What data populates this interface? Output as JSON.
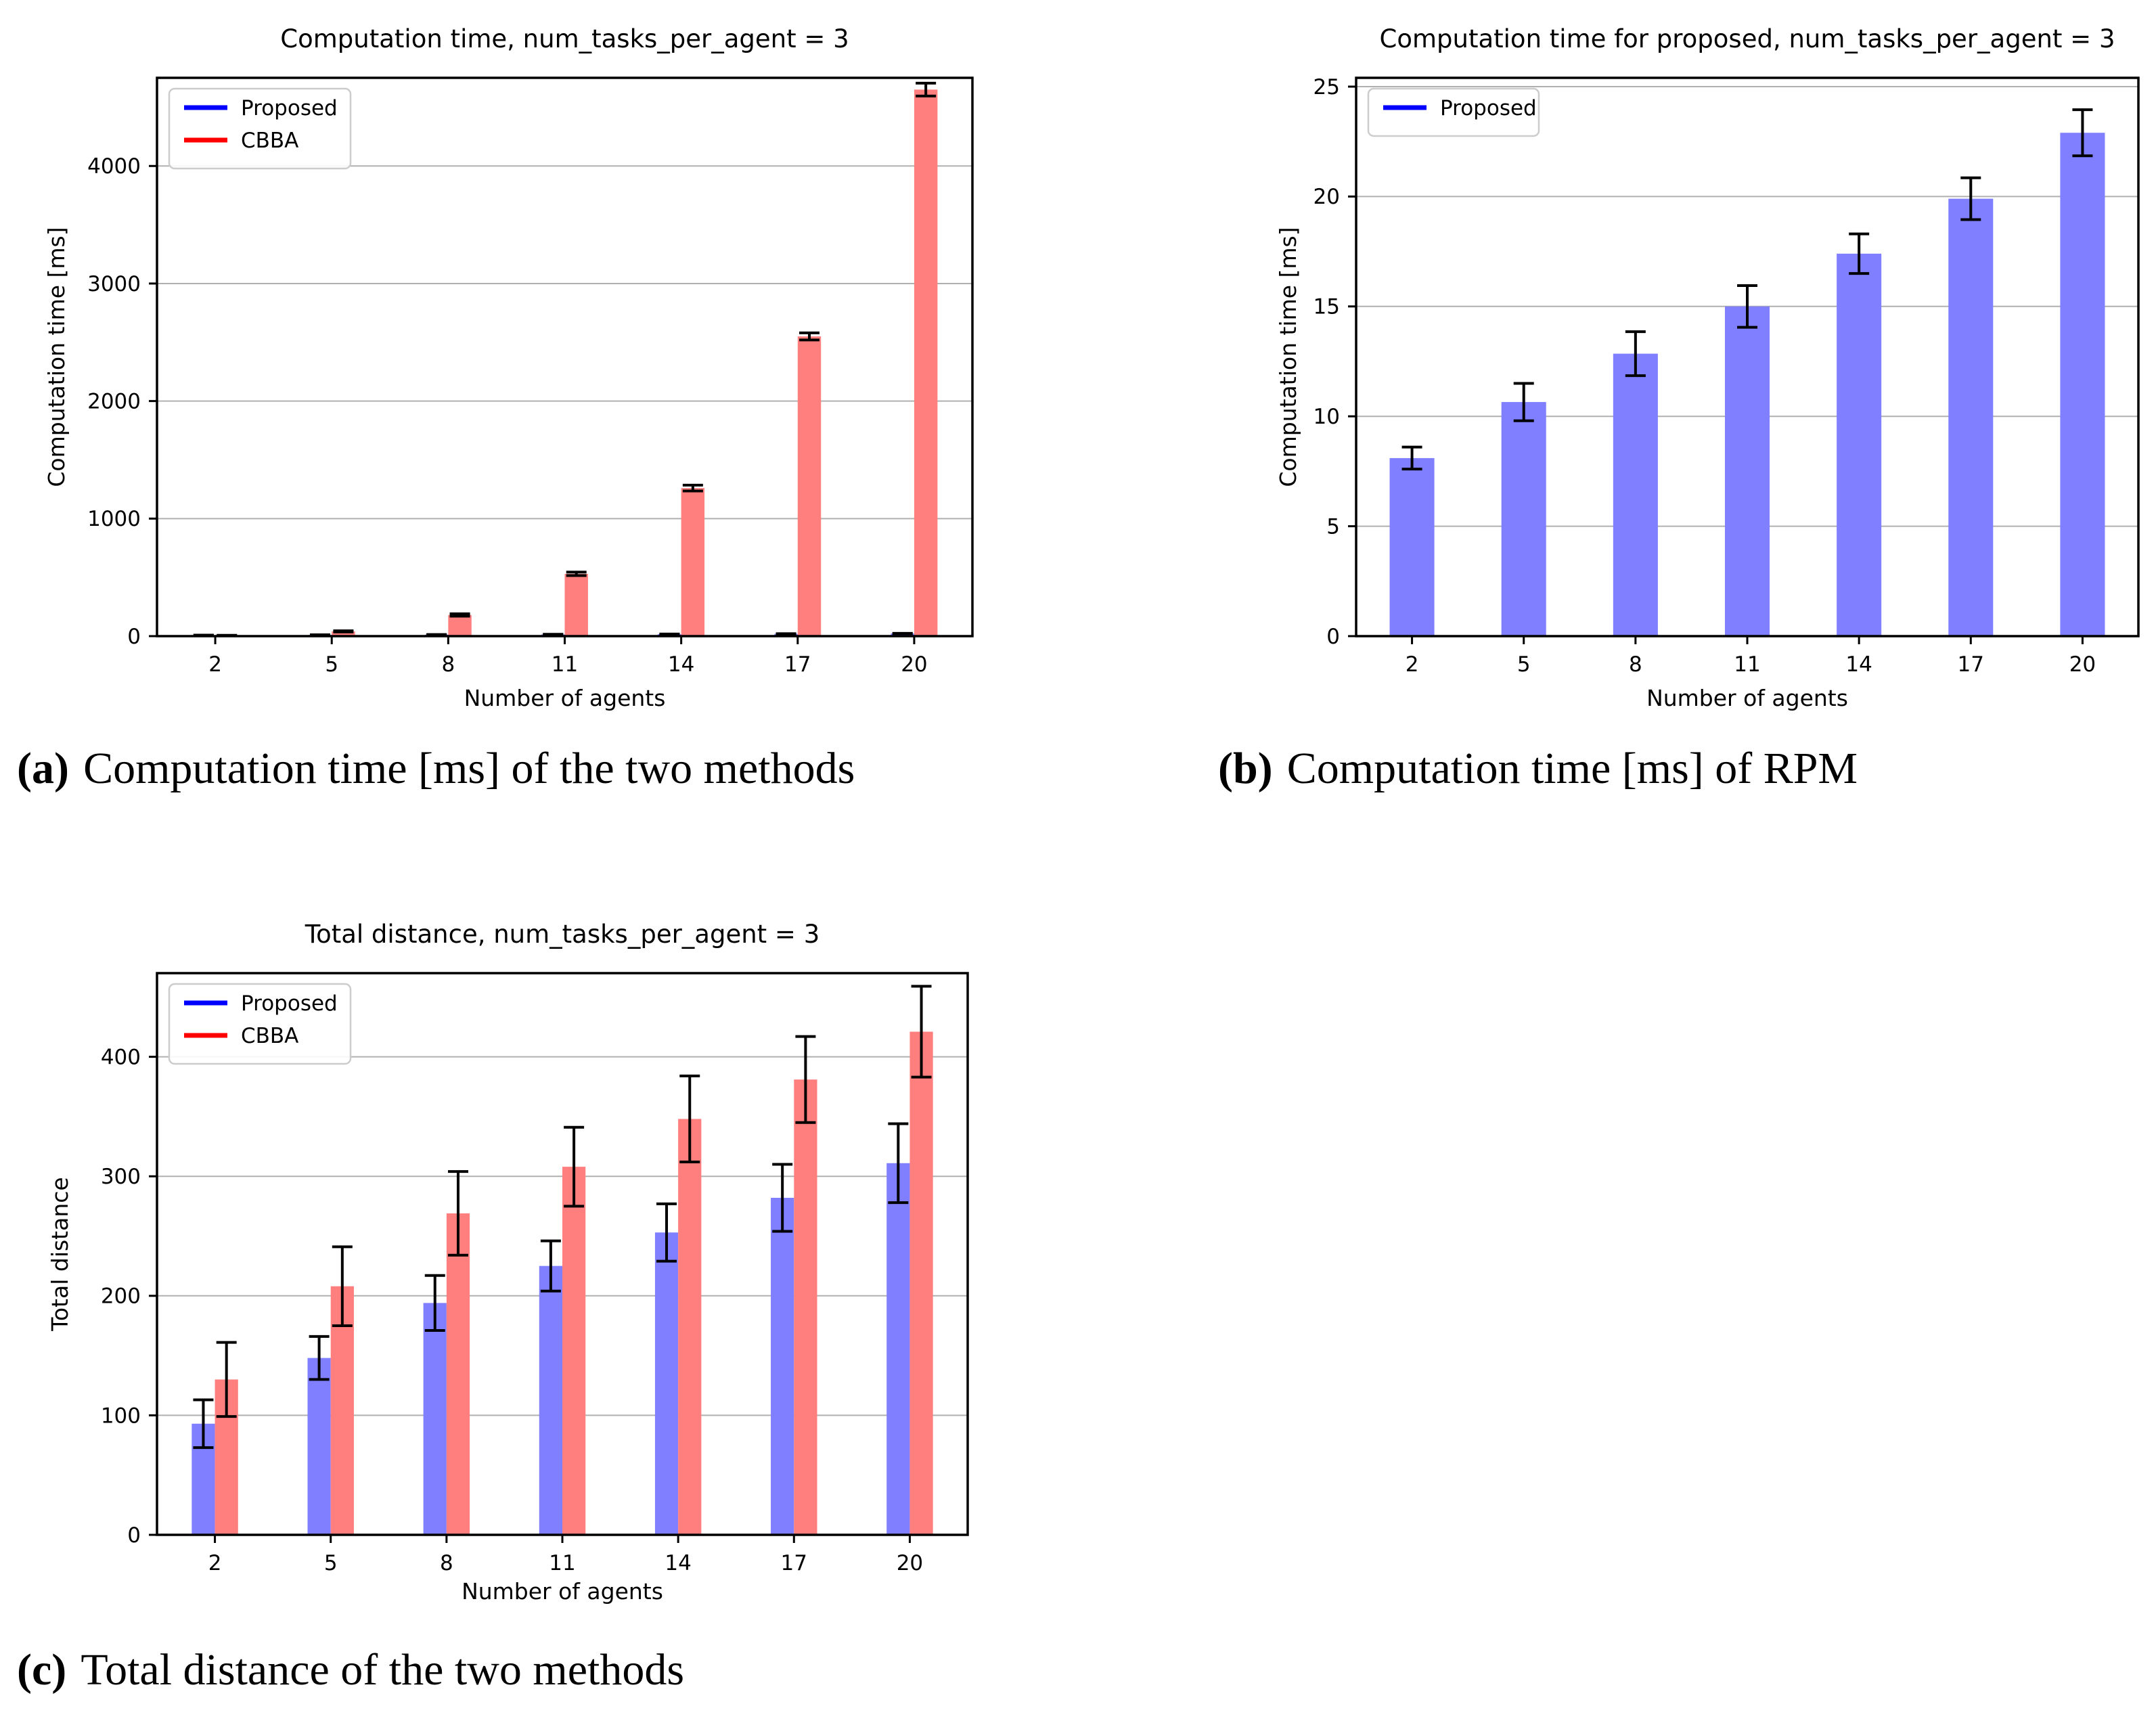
{
  "colors": {
    "background": "#ffffff",
    "bar_blue": "#7f7fff",
    "bar_red": "#ff7f7f",
    "legend_blue": "#0000ff",
    "legend_red": "#ff0000",
    "grid": "#b0b0b0",
    "spine": "#000000",
    "error_bar": "#000000",
    "legend_border": "#cccccc",
    "text": "#000000"
  },
  "captions": [
    {
      "prefix": "(a)",
      "text": "Computation time [ms] of the two methods"
    },
    {
      "prefix": "(b)",
      "text": "Computation time [ms] of RPM"
    },
    {
      "prefix": "(c)",
      "text": "Total distance of the two methods"
    }
  ],
  "chart_data": [
    {
      "id": "a",
      "type": "bar",
      "title": "Computation time, num_tasks_per_agent = 3",
      "xlabel": "Number of agents",
      "ylabel": "Computation time [ms]",
      "categories": [
        "2",
        "5",
        "8",
        "11",
        "14",
        "17",
        "20"
      ],
      "series": [
        {
          "name": "Proposed",
          "bar_color": "#7f7fff",
          "legend_color": "#0000ff",
          "values": [
            8.1,
            10.65,
            12.85,
            15.0,
            17.4,
            19.9,
            22.9
          ],
          "errors": [
            0.5,
            0.85,
            1.0,
            0.95,
            0.9,
            0.95,
            1.05
          ]
        },
        {
          "name": "CBBA",
          "bar_color": "#ff7f7f",
          "legend_color": "#ff0000",
          "values": [
            5,
            40,
            180,
            530,
            1260,
            2550,
            4650
          ],
          "errors": [
            2,
            5,
            10,
            15,
            25,
            30,
            55
          ]
        }
      ],
      "ylim": [
        0,
        4750
      ],
      "yticks": [
        0,
        1000,
        2000,
        3000,
        4000
      ],
      "grid": true,
      "legend_position": "upper left",
      "bar_width": 0.2
    },
    {
      "id": "b",
      "type": "bar",
      "title": "Computation time for proposed, num_tasks_per_agent = 3",
      "xlabel": "Number of agents",
      "ylabel": "Computation time [ms]",
      "categories": [
        "2",
        "5",
        "8",
        "11",
        "14",
        "17",
        "20"
      ],
      "series": [
        {
          "name": "Proposed",
          "bar_color": "#7f7fff",
          "legend_color": "#0000ff",
          "values": [
            8.1,
            10.65,
            12.85,
            15.0,
            17.4,
            19.9,
            22.9
          ],
          "errors": [
            0.5,
            0.85,
            1.0,
            0.95,
            0.9,
            0.95,
            1.05
          ]
        }
      ],
      "ylim": [
        0,
        25.4
      ],
      "yticks": [
        0,
        5,
        10,
        15,
        20,
        25
      ],
      "grid": true,
      "legend_position": "upper left",
      "bar_width": 0.4
    },
    {
      "id": "c",
      "type": "bar",
      "title": "Total distance, num_tasks_per_agent = 3",
      "xlabel": "Number of agents",
      "ylabel": "Total distance",
      "categories": [
        "2",
        "5",
        "8",
        "11",
        "14",
        "17",
        "20"
      ],
      "series": [
        {
          "name": "Proposed",
          "bar_color": "#7f7fff",
          "legend_color": "#0000ff",
          "values": [
            93,
            148,
            194,
            225,
            253,
            282,
            311
          ],
          "errors": [
            20,
            18,
            23,
            21,
            24,
            28,
            33
          ]
        },
        {
          "name": "CBBA",
          "bar_color": "#ff7f7f",
          "legend_color": "#ff0000",
          "values": [
            130,
            208,
            269,
            308,
            348,
            381,
            421
          ],
          "errors": [
            31,
            33,
            35,
            33,
            36,
            36,
            38
          ]
        }
      ],
      "ylim": [
        0,
        470
      ],
      "yticks": [
        0,
        100,
        200,
        300,
        400
      ],
      "grid": true,
      "legend_position": "upper left",
      "bar_width": 0.2
    }
  ]
}
